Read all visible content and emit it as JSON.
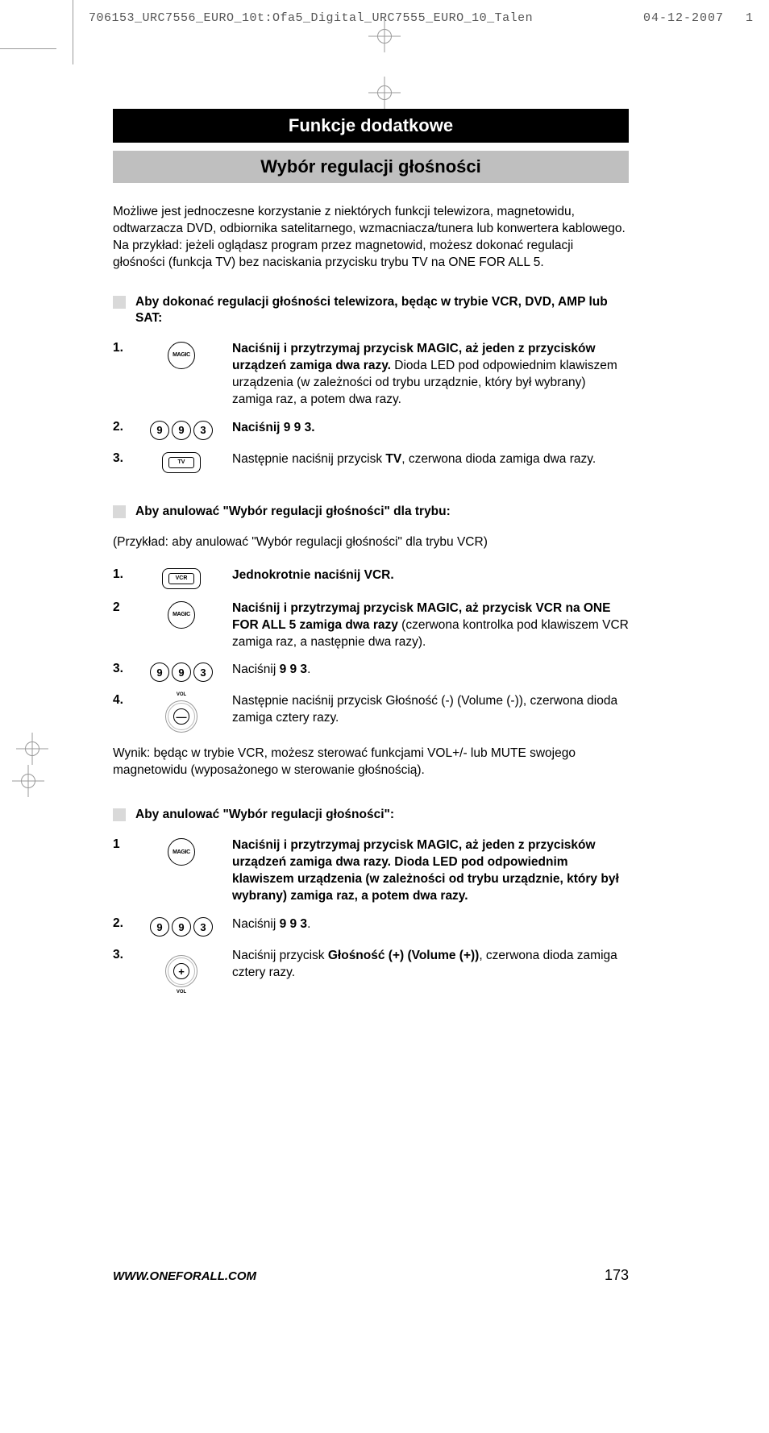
{
  "meta": {
    "filename": "706153_URC7556_EURO_10t:Ofa5_Digital_URC7555_EURO_10_Talen",
    "date": "04-12-2007",
    "seq": "1"
  },
  "title_main": "Funkcje dodatkowe",
  "title_sub": "Wybór regulacji głośności",
  "intro": "Możliwe jest jednoczesne korzystanie z niektórych funkcji telewizora, magnetowidu, odtwarzacza DVD, odbiornika satelitarnego, wzmacniacza/tunera lub konwertera kablowego.\nNa przykład: jeżeli oglądasz program przez magnetowid, możesz dokonać regulacji głośności (funkcja TV) bez naciskania przycisku trybu TV na ONE FOR ALL 5.",
  "secA": {
    "head": "Aby dokonać regulacji głośności telewizora, będąc w trybie VCR, DVD, AMP lub SAT:",
    "s1": {
      "n": "1.",
      "bold": "Naciśnij i przytrzymaj przycisk MAGIC, aż jeden z przycisków urządzeń zamiga dwa razy.",
      "rest": " Dioda LED pod odpowiednim klawiszem urządzenia (w zależności od trybu urządznie, który był wybrany) zamiga raz, a potem dwa razy.",
      "icon": "MAGIC"
    },
    "s2": {
      "n": "2.",
      "txt": "Naciśnij 9 9 3.",
      "d1": "9",
      "d2": "9",
      "d3": "3"
    },
    "s3": {
      "n": "3.",
      "pre": "Następnie naciśnij przycisk ",
      "bold": "TV",
      "post": ", czerwona dioda zamiga dwa razy.",
      "icon": "TV"
    }
  },
  "secB": {
    "head": "Aby anulować \"Wybór regulacji głośności\" dla trybu:",
    "example": "(Przykład: aby anulować \"Wybór regulacji głośności\" dla trybu VCR)",
    "s1": {
      "n": "1.",
      "bold": "Jednokrotnie naciśnij VCR.",
      "icon": "VCR"
    },
    "s2": {
      "n": "2",
      "bold": "Naciśnij i przytrzymaj przycisk MAGIC, aż przycisk VCR na ONE FOR ALL 5 zamiga dwa razy",
      "rest": " (czerwona kontrolka pod klawiszem VCR zamiga raz, a następnie dwa razy).",
      "icon": "MAGIC"
    },
    "s3": {
      "n": "3.",
      "pre": "Naciśnij ",
      "bold": "9 9 3",
      "post": ".",
      "d1": "9",
      "d2": "9",
      "d3": "3"
    },
    "s4": {
      "n": "4.",
      "txt": "Następnie naciśnij przycisk Głośność (-) (Volume (-)), czerwona dioda zamiga cztery razy.",
      "vol_label": "VOL",
      "vol_sym": "—"
    },
    "result": "Wynik: będąc w trybie VCR, możesz sterować funkcjami VOL+/- lub MUTE swojego magnetowidu (wyposażonego w sterowanie głośnością)."
  },
  "secC": {
    "head": "Aby anulować \"Wybór regulacji głośności\":",
    "s1": {
      "n": "1",
      "bold": "Naciśnij i przytrzymaj przycisk MAGIC, aż jeden z przycisków urządzeń zamiga dwa razy. Dioda LED pod odpowiednim klawiszem urządzenia (w zależności od trybu urządznie, który był wybrany) zamiga raz, a potem dwa razy.",
      "icon": "MAGIC"
    },
    "s2": {
      "n": "2.",
      "pre": "Naciśnij ",
      "bold": "9 9 3",
      "post": ".",
      "d1": "9",
      "d2": "9",
      "d3": "3"
    },
    "s3": {
      "n": "3.",
      "pre": "Naciśnij przycisk ",
      "bold": "Głośność (+) (Volume (+))",
      "post": ", czerwona dioda zamiga cztery razy.",
      "vol_label": "VOL",
      "vol_sym": "+"
    }
  },
  "footer": {
    "url": "WWW.ONEFORALL.COM",
    "page": "173"
  },
  "style": {
    "black": "#000000",
    "gray_box": "#bfbfbf",
    "gray_sq": "#d9d9d9",
    "text": "#000000",
    "bg": "#ffffff",
    "body_fontsize": 15.5,
    "title_fontsize": 22
  }
}
